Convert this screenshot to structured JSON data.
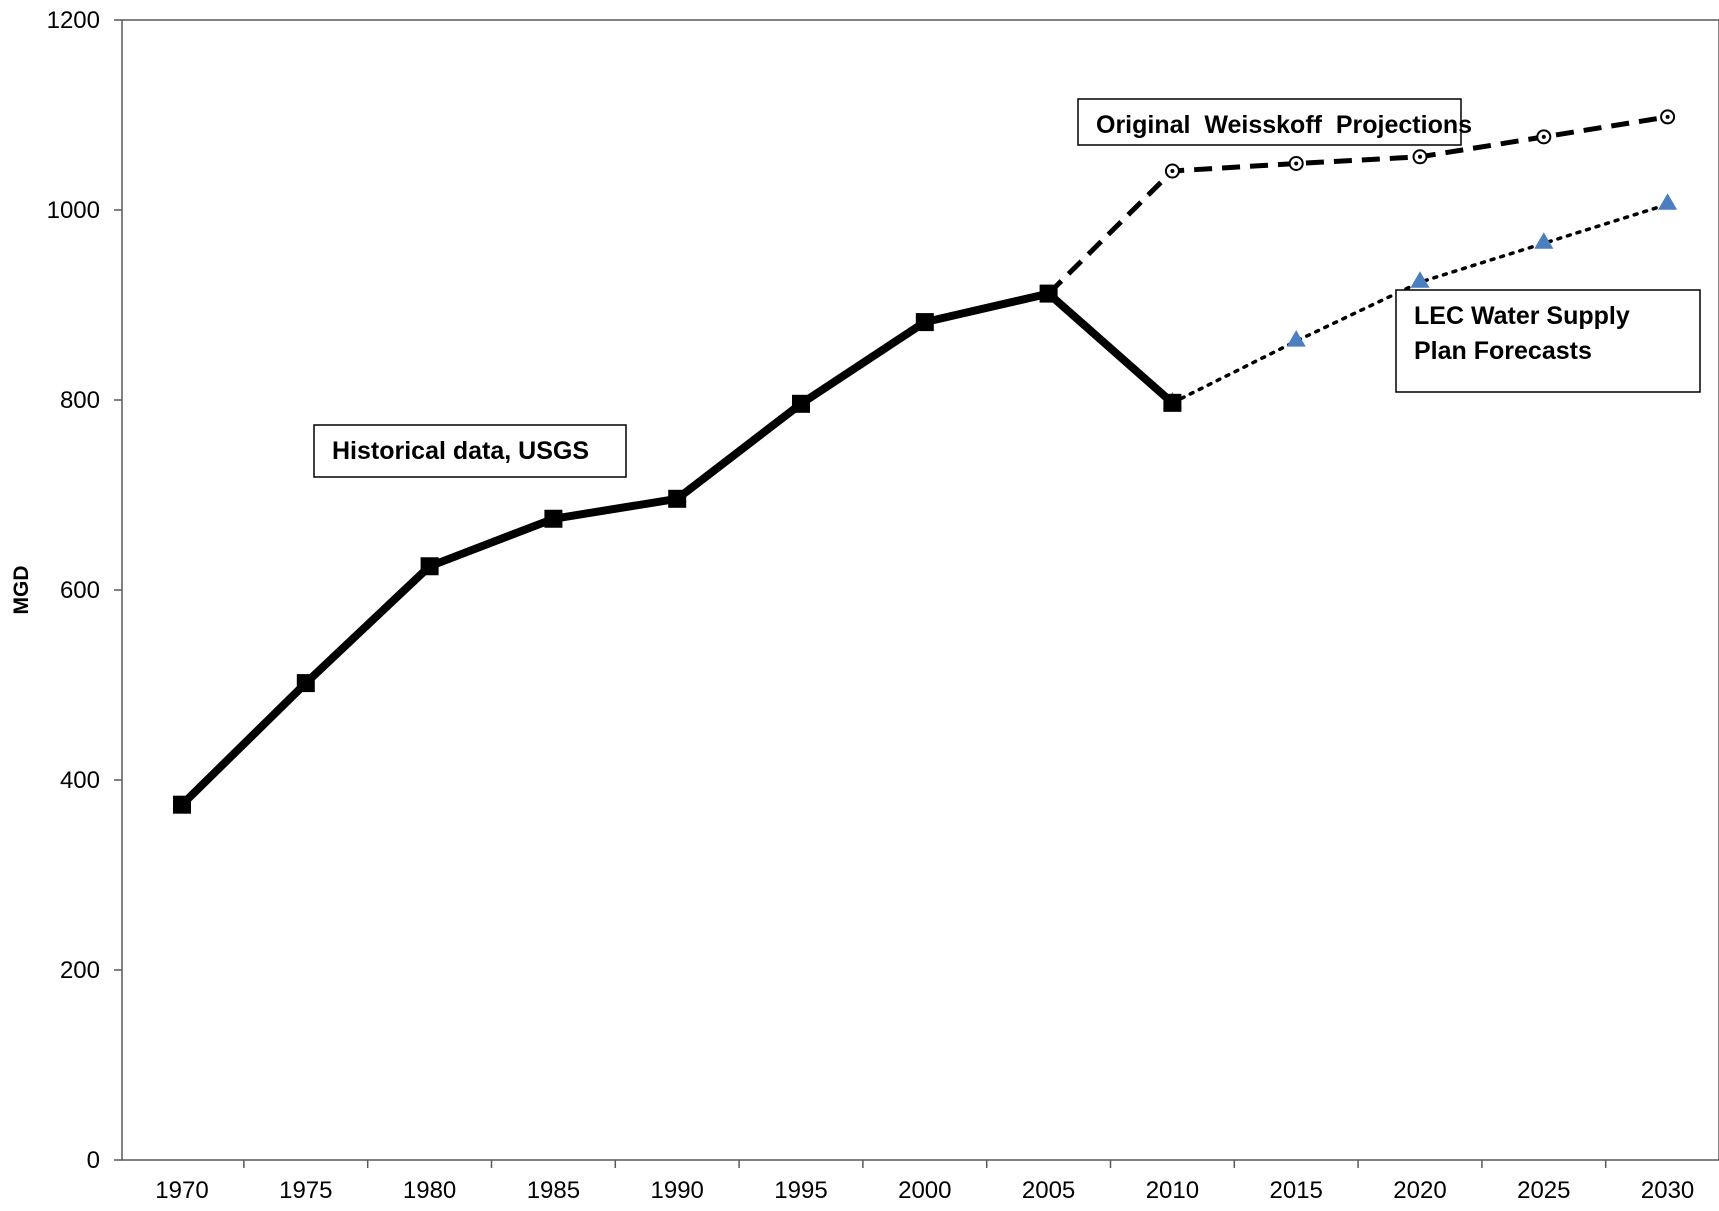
{
  "chart_data": {
    "type": "line",
    "ylabel": "MGD",
    "xlabel": "",
    "ylim": [
      0,
      1200
    ],
    "y_ticks": [
      0,
      200,
      400,
      600,
      800,
      1000,
      1200
    ],
    "categories": [
      "1970",
      "1975",
      "1980",
      "1985",
      "1990",
      "1995",
      "2000",
      "2005",
      "2010",
      "2015",
      "2020",
      "2025",
      "2030"
    ],
    "grid": false,
    "legend": "none",
    "series": [
      {
        "key": "historical",
        "values": [
          374,
          502,
          625,
          675,
          696,
          796,
          882,
          912,
          797,
          null,
          null,
          null,
          null
        ],
        "color": "#000000",
        "line_style": "solid",
        "marker": "square"
      },
      {
        "key": "weisskoff",
        "values": [
          null,
          null,
          null,
          null,
          null,
          null,
          null,
          912,
          1041,
          1049,
          1056,
          1077,
          1098
        ],
        "color": "#000000",
        "line_style": "dashed",
        "marker": "open-circle"
      },
      {
        "key": "lec",
        "values": [
          null,
          null,
          null,
          null,
          null,
          null,
          null,
          null,
          797,
          862,
          924,
          965,
          1006
        ],
        "color": "#000000",
        "marker_color": "#4a7fc1",
        "line_style": "dotted",
        "marker": "triangle"
      }
    ],
    "annotations": [
      {
        "key": "historical",
        "lines": [
          "Historical data, USGS"
        ]
      },
      {
        "key": "weisskoff",
        "lines": [
          "Original  Weisskoff  Projections"
        ]
      },
      {
        "key": "lec",
        "lines": [
          "LEC Water Supply",
          "Plan Forecasts"
        ]
      }
    ]
  }
}
